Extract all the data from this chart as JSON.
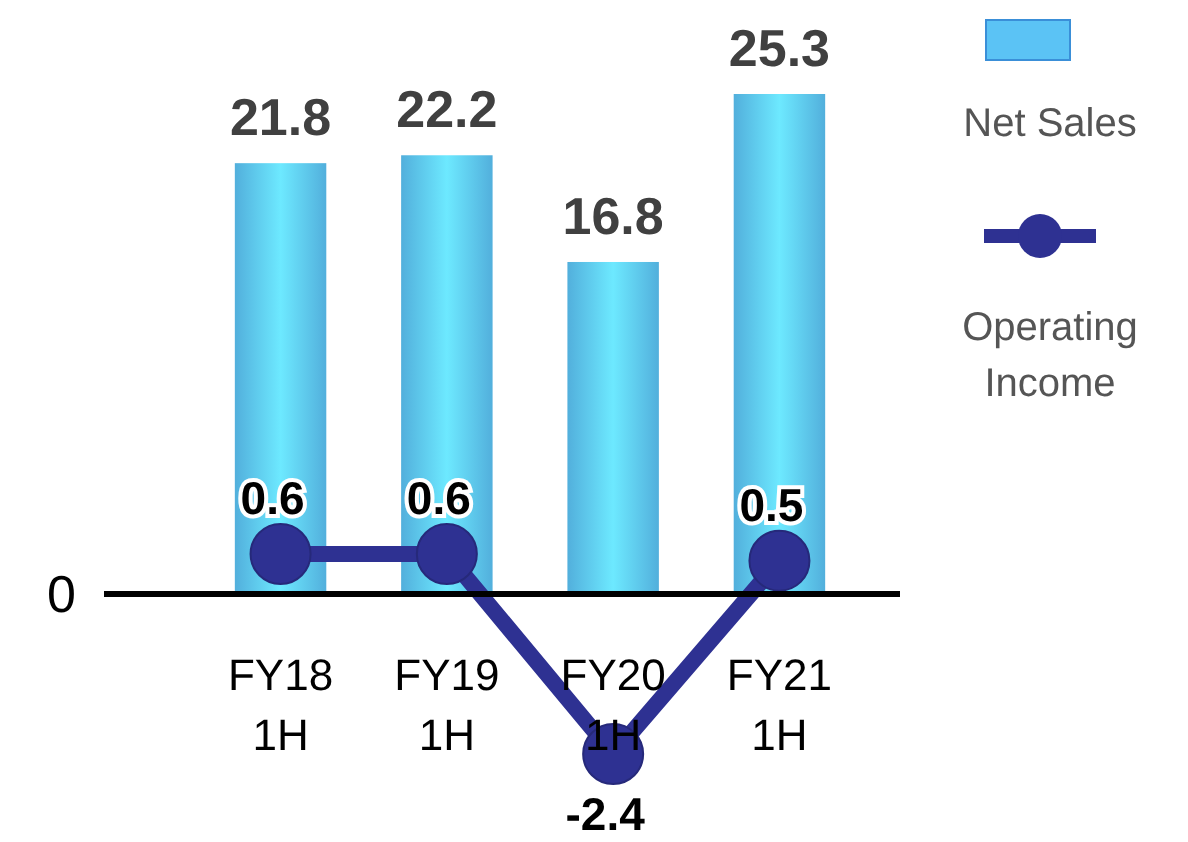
{
  "chart_data": {
    "type": "bar",
    "categories": [
      "FY18 1H",
      "FY19 1H",
      "FY20 1H",
      "FY21 1H"
    ],
    "series": [
      {
        "name": "Net Sales",
        "color": "#5bc3f5",
        "values": [
          21.8,
          22.2,
          16.8,
          25.3
        ]
      },
      {
        "name": "Operating Income",
        "type": "line",
        "axis": "y2",
        "color": "#2e3192",
        "values": [
          0.6,
          0.6,
          -2.4,
          0.5
        ]
      }
    ],
    "annotations": [
      "0"
    ],
    "data_labels": true,
    "legend": "right",
    "marker": "circle"
  }
}
